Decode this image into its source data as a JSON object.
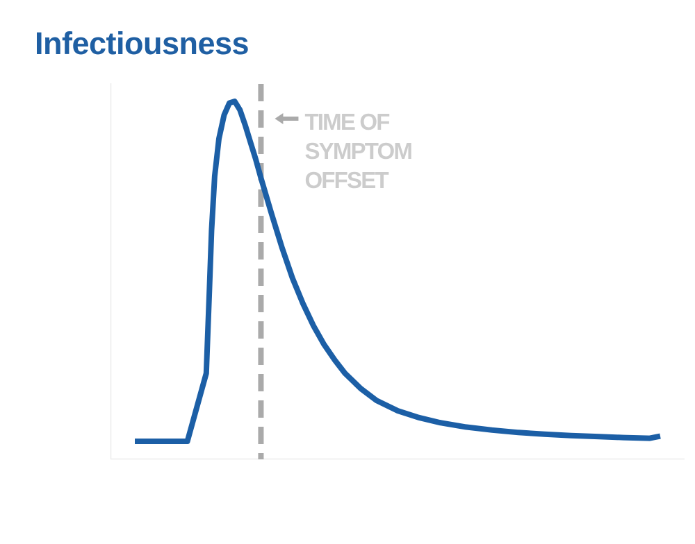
{
  "title": "Infectiousness",
  "chart_data": {
    "type": "line",
    "title": "Infectiousness",
    "xlabel": "",
    "ylabel": "",
    "grid": false,
    "legend": "none",
    "x": [
      0,
      10,
      13.6,
      14.2,
      14.6,
      15.2,
      16,
      17,
      18,
      19,
      20,
      21,
      22,
      23,
      24,
      26,
      28,
      30,
      32,
      34,
      36,
      38,
      40,
      43,
      46,
      50,
      54,
      58,
      63,
      68,
      73,
      78,
      83,
      88,
      93,
      98,
      100
    ],
    "y": [
      0,
      0,
      0.2,
      0.45,
      0.62,
      0.78,
      0.89,
      0.96,
      0.995,
      1.0,
      0.975,
      0.93,
      0.88,
      0.83,
      0.775,
      0.67,
      0.57,
      0.48,
      0.405,
      0.34,
      0.285,
      0.24,
      0.2,
      0.155,
      0.12,
      0.09,
      0.07,
      0.055,
      0.042,
      0.033,
      0.026,
      0.021,
      0.017,
      0.014,
      0.011,
      0.009,
      0.015
    ],
    "series": [
      {
        "name": "",
        "color": "#1c5fa6"
      }
    ],
    "xlim": [
      0,
      100
    ],
    "ylim": [
      0,
      1
    ],
    "annotations": [
      {
        "x": 24,
        "lines": [
          "TIME OF",
          "SYMPTOM",
          "OFFSET"
        ],
        "style": "dashed-vertical-line",
        "color": "#aaaaaa",
        "text_color": "#cccccc",
        "arrow": "left"
      }
    ]
  }
}
